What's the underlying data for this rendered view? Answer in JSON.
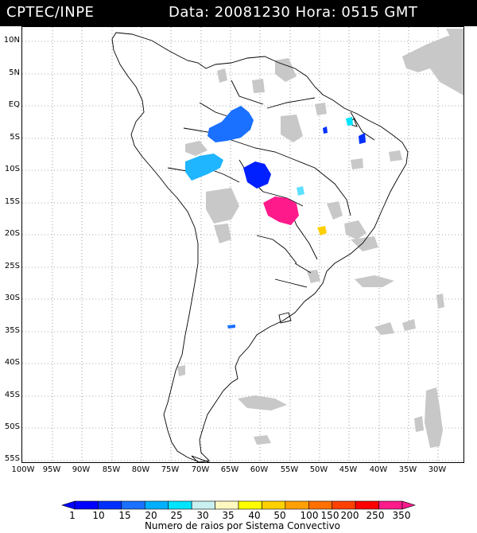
{
  "header": {
    "source": "CPTEC/INPE",
    "datetime": "Data: 20081230 Hora: 0515 GMT"
  },
  "axes": {
    "latitude_labels": [
      "10N",
      "5N",
      "EQ",
      "5S",
      "10S",
      "15S",
      "20S",
      "25S",
      "30S",
      "35S",
      "40S",
      "45S",
      "50S",
      "55S"
    ],
    "longitude_labels": [
      "100W",
      "95W",
      "90W",
      "85W",
      "80W",
      "75W",
      "70W",
      "65W",
      "60W",
      "55W",
      "50W",
      "45W",
      "40W",
      "35W",
      "30W"
    ]
  },
  "legend": {
    "values": [
      "1",
      "10",
      "15",
      "20",
      "25",
      "30",
      "35",
      "40",
      "50",
      "100",
      "150",
      "200",
      "250",
      "350"
    ],
    "colors": [
      "#0000ff",
      "#0030ff",
      "#1a70ff",
      "#00b0ff",
      "#00e5ff",
      "#c8f0f0",
      "#fff8c0",
      "#ffff00",
      "#ffd000",
      "#ffa000",
      "#ff7000",
      "#ff4000",
      "#ff0000",
      "#ff1a8c"
    ],
    "caption": "Numero de raios por Sistema Convectivo"
  },
  "colors": {
    "cloud": "#c8c8c8",
    "coast": "#000000",
    "grid": "#555555"
  }
}
